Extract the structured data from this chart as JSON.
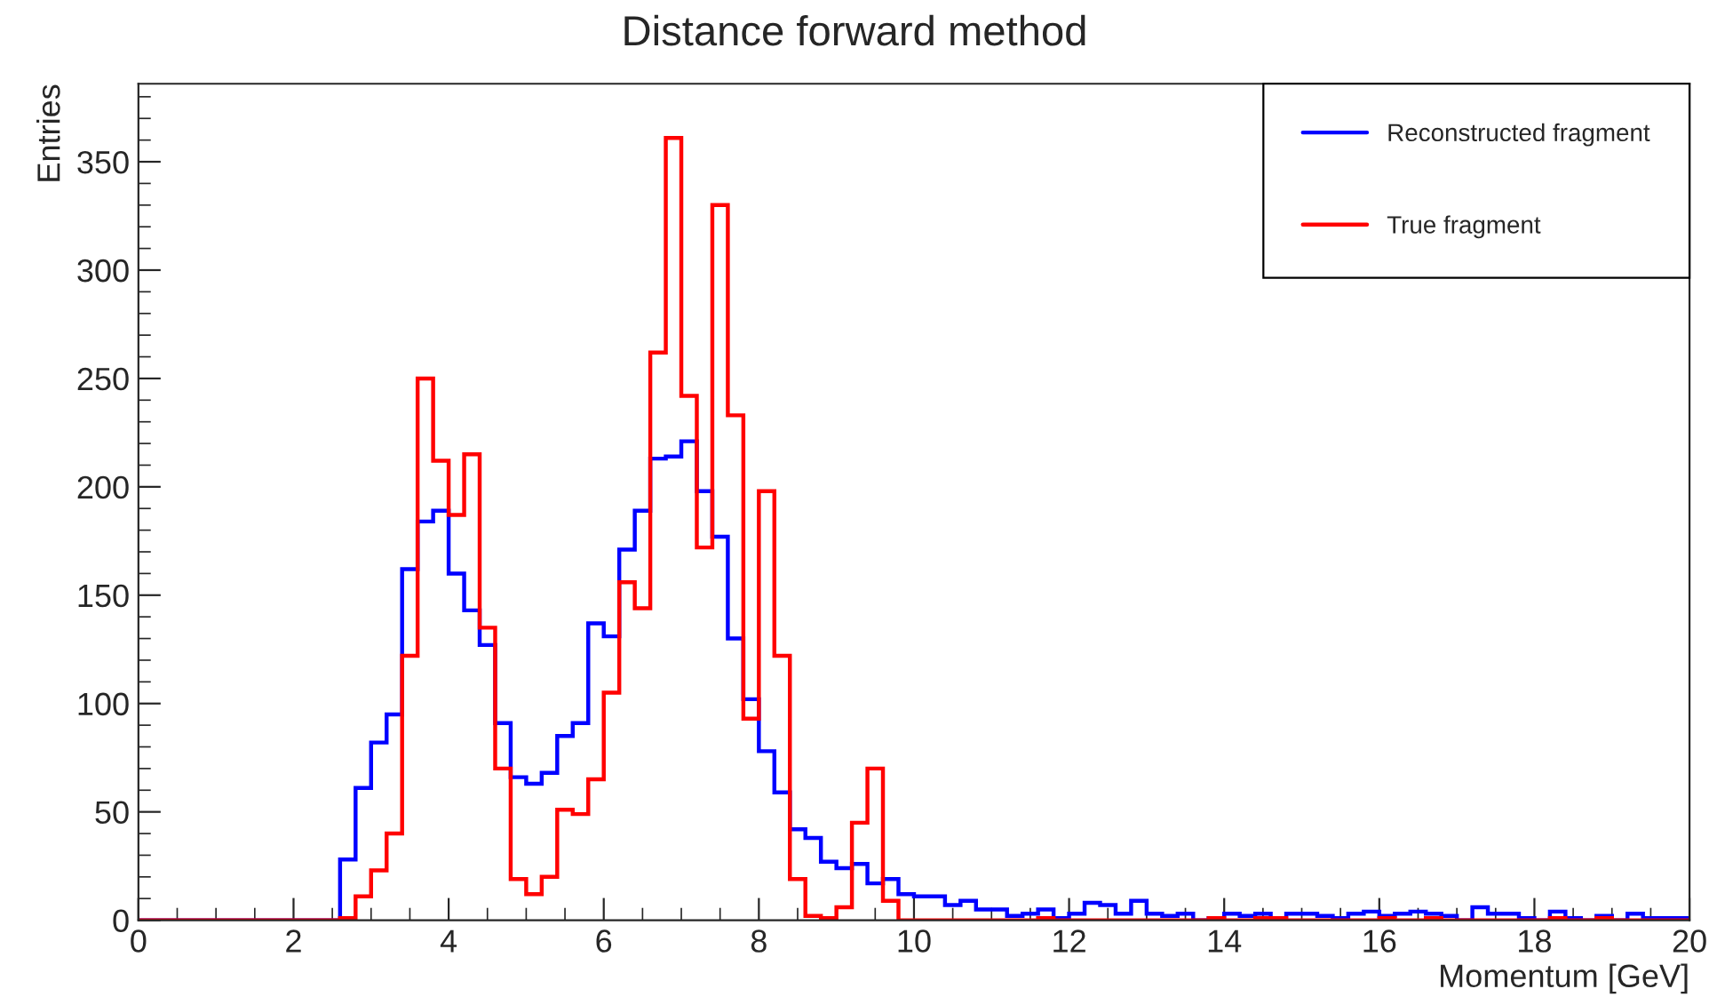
{
  "chart_data": {
    "type": "histogram",
    "title": "Distance forward method",
    "xlabel": "Momentum [GeV]",
    "ylabel": "Entries",
    "bins": [
      0,
      0.2,
      0.4,
      0.6,
      0.8,
      1,
      1.2,
      1.4,
      1.6,
      1.8,
      2,
      2.2,
      2.4,
      2.6,
      2.8,
      3,
      3.2,
      3.4,
      3.6,
      3.8,
      4,
      4.2,
      4.4,
      4.6,
      4.8,
      5,
      5.2,
      5.4,
      5.6,
      5.8,
      6,
      6.2,
      6.4,
      6.6,
      6.8,
      7,
      7.2,
      7.4,
      7.6,
      7.8,
      8,
      8.2,
      8.4,
      8.6,
      8.8,
      9,
      9.2,
      9.4,
      9.6,
      9.8,
      10,
      10.2,
      10.4,
      10.6,
      10.8,
      11,
      11.2,
      11.4,
      11.6,
      11.8,
      12,
      12.2,
      12.4,
      12.6,
      12.8,
      13,
      13.2,
      13.4,
      13.6,
      13.8,
      14,
      14.2,
      14.4,
      14.6,
      14.8,
      15,
      15.2,
      15.4,
      15.6,
      15.8,
      16,
      16.2,
      16.4,
      16.6,
      16.8,
      17,
      17.2,
      17.4,
      17.6,
      17.8,
      18,
      18.2,
      18.4,
      18.6,
      18.8,
      19,
      19.2,
      19.4,
      19.6,
      19.8,
      20
    ],
    "series": [
      {
        "name": "Reconstructed fragment",
        "color": "#0000ff",
        "values": [
          0,
          0,
          0,
          0,
          0,
          0,
          0,
          0,
          0,
          0,
          0,
          0,
          0,
          28,
          61,
          82,
          95,
          162,
          184,
          189,
          160,
          143,
          127,
          91,
          66,
          63,
          68,
          85,
          91,
          137,
          131,
          171,
          189,
          213,
          214,
          221,
          198,
          177,
          130,
          102,
          78,
          59,
          42,
          38,
          27,
          24,
          26,
          17,
          19,
          12,
          11,
          11,
          7,
          9,
          5,
          5,
          2,
          3,
          5,
          1,
          3,
          8,
          7,
          3,
          9,
          3,
          2,
          3,
          0,
          1,
          3,
          2,
          3,
          0,
          3,
          3,
          2,
          1,
          3,
          4,
          2,
          3,
          4,
          3,
          2,
          0,
          6,
          3,
          3,
          1,
          0,
          4,
          1,
          0,
          2,
          0,
          3,
          1,
          1,
          1
        ]
      },
      {
        "name": "True fragment",
        "color": "#ff0000",
        "values": [
          0,
          0,
          0,
          0,
          0,
          0,
          0,
          0,
          0,
          0,
          0,
          0,
          0,
          1,
          11,
          23,
          40,
          122,
          250,
          212,
          187,
          215,
          135,
          70,
          19,
          12,
          20,
          51,
          49,
          65,
          105,
          156,
          144,
          262,
          361,
          242,
          172,
          330,
          233,
          93,
          198,
          122,
          19,
          2,
          1,
          6,
          45,
          70,
          9,
          0,
          0,
          0,
          0,
          0,
          0,
          0,
          0,
          0,
          1,
          0,
          0,
          0,
          0,
          0,
          0,
          0,
          0,
          0,
          0,
          1,
          0,
          0,
          1,
          1,
          0,
          0,
          0,
          0,
          0,
          0,
          1,
          0,
          0,
          1,
          0,
          0,
          0,
          0,
          0,
          0,
          0,
          1,
          0,
          0,
          1,
          0,
          0,
          0,
          0,
          0
        ]
      }
    ],
    "xlim": [
      0,
      20
    ],
    "xticks": [
      0,
      2,
      4,
      6,
      8,
      10,
      12,
      14,
      16,
      18,
      20
    ],
    "ylim": [
      0,
      386
    ],
    "yticks": [
      0,
      50,
      100,
      150,
      200,
      250,
      300,
      350
    ],
    "grid": false,
    "legend": "top right"
  }
}
